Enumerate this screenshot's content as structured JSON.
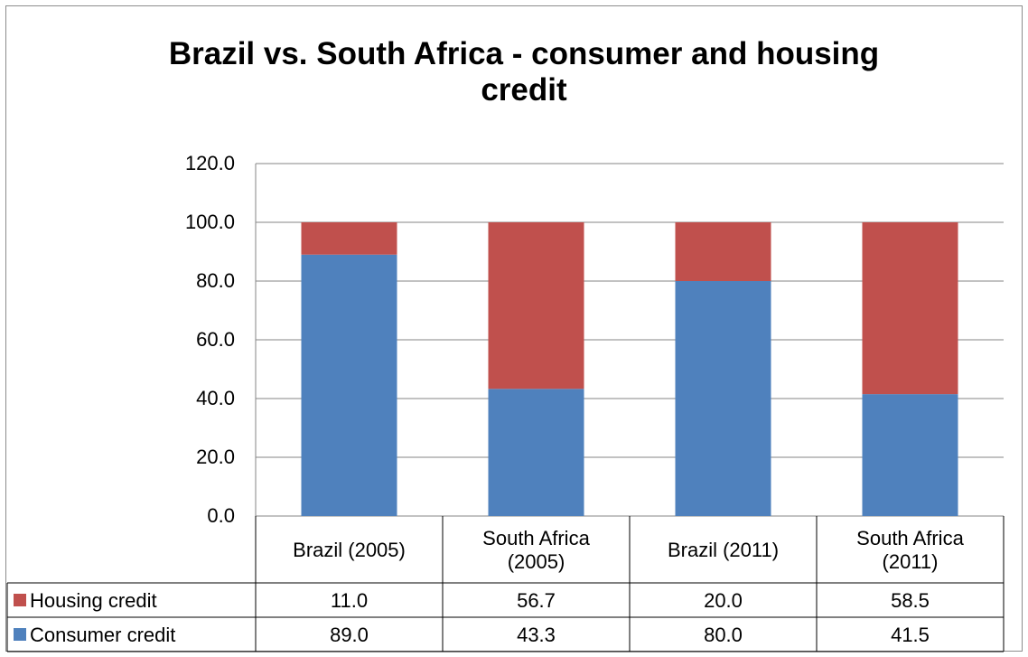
{
  "chart_data": {
    "type": "bar",
    "stacked": true,
    "title_lines": [
      "Brazil vs. South Africa - consumer and housing",
      "credit"
    ],
    "categories": [
      [
        "Brazil (2005)"
      ],
      [
        "South Africa",
        "(2005)"
      ],
      [
        "Brazil (2011)"
      ],
      [
        "South Africa",
        "(2011)"
      ]
    ],
    "series": [
      {
        "name": "Consumer credit",
        "color": "#4f81bd",
        "values": [
          89.0,
          43.3,
          80.0,
          41.5
        ],
        "labels": [
          "89.0",
          "43.3",
          "80.0",
          "41.5"
        ]
      },
      {
        "name": "Housing credit",
        "color": "#c0504d",
        "values": [
          11.0,
          56.7,
          20.0,
          58.5
        ],
        "labels": [
          "11.0",
          "56.7",
          "20.0",
          "58.5"
        ]
      }
    ],
    "table_order": [
      1,
      0
    ],
    "ylim": [
      0,
      120
    ],
    "yticks": [
      "0.0",
      "20.0",
      "40.0",
      "60.0",
      "80.0",
      "100.0",
      "120.0"
    ],
    "ytick_values": [
      0,
      20,
      40,
      60,
      80,
      100,
      120
    ],
    "grid": true,
    "legend": "data-table"
  }
}
